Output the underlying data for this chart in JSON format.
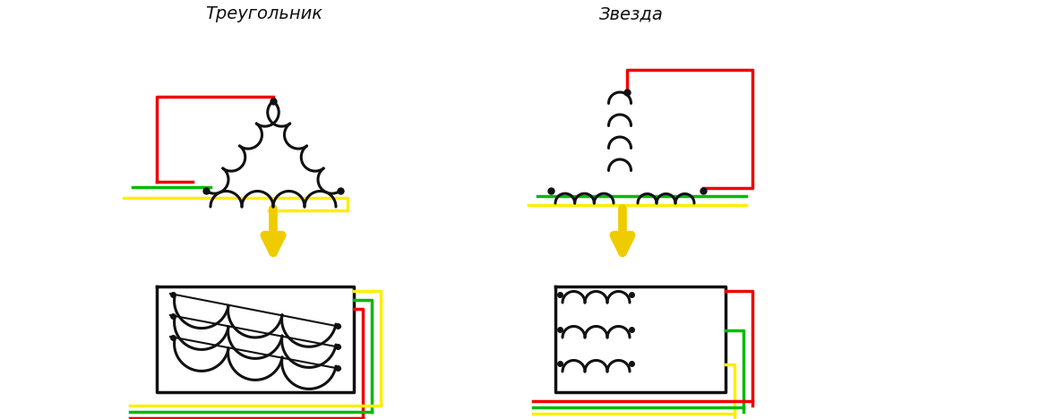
{
  "title_triangle": "Треугольник",
  "title_star": "Звезда",
  "bg": "#ffffff",
  "red": "#ee0000",
  "green": "#00bb00",
  "yellow": "#ffee00",
  "black": "#111111",
  "arrow_yellow": "#eecc00",
  "lw": 2.5,
  "clw": 2.2,
  "fs": 14
}
